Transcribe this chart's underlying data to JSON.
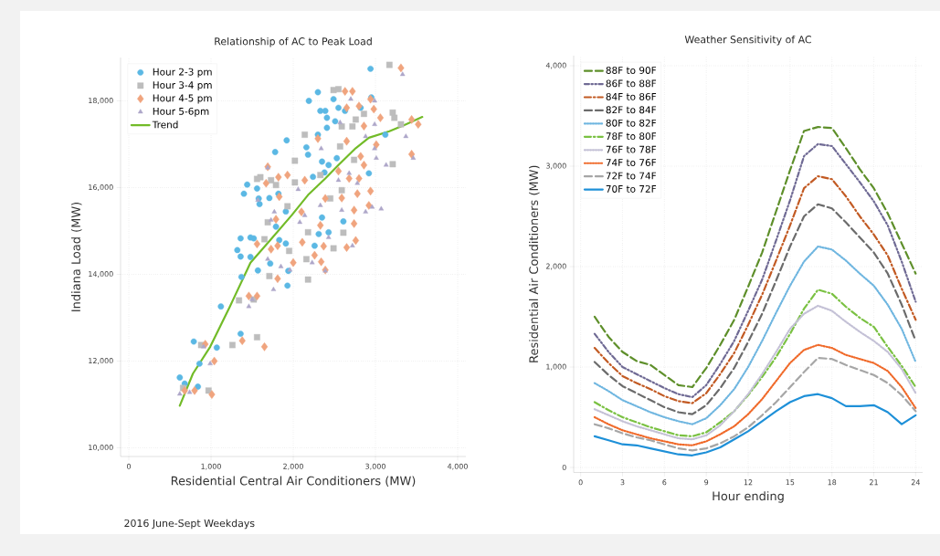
{
  "chart_data": [
    {
      "type": "scatter",
      "title": "Relationship of AC to Peak Load",
      "xlabel": "Residential Central Air Conditioners (MW)",
      "ylabel": "Indiana Load (MW)",
      "annotations": [
        "2016 June-Sept Weekdays"
      ],
      "xlim": [
        -100,
        4100
      ],
      "ylim": [
        9800,
        19000
      ],
      "xticks": [
        0,
        {
          "value": 1000,
          "label": "1,000"
        },
        {
          "value": 2000,
          "label": "2,000"
        },
        {
          "value": 3000,
          "label": "3,000"
        },
        {
          "value": 4000,
          "label": "4,000"
        }
      ],
      "yticks": [
        {
          "value": 10000,
          "label": "10,000"
        },
        {
          "value": 12000,
          "label": "12,000"
        },
        {
          "value": 14000,
          "label": "14,000"
        },
        {
          "value": 16000,
          "label": "16,000"
        },
        {
          "value": 18000,
          "label": "18,000"
        }
      ],
      "grid": true,
      "legend": "top left",
      "series": [
        {
          "name": "Hour 2-3 pm",
          "type": "scatter",
          "marker": "circle",
          "color": "#5bb8e4",
          "x": [
            2940,
            2950,
            2190,
            2300,
            2490,
            2330,
            2390,
            2410,
            2410,
            2550,
            2510,
            2630,
            2300,
            1920,
            1780,
            2160,
            2180,
            2350,
            2430,
            2530,
            2920,
            3120,
            2240,
            2380,
            1440,
            1400,
            1560,
            1580,
            1590,
            1710,
            1820,
            1910,
            1790,
            2350,
            2310,
            2430,
            2610,
            1360,
            1480,
            1520,
            1320,
            1360,
            1480,
            1830,
            1910,
            2260,
            1720,
            1570,
            1940,
            1370,
            1930,
            1120,
            1360,
            1070,
            790,
            860,
            620,
            680,
            840,
            2820
          ],
          "values": [
            18740,
            18080,
            18000,
            18200,
            18040,
            17770,
            17770,
            17610,
            17380,
            17840,
            17530,
            17770,
            17220,
            17090,
            16820,
            16930,
            16760,
            16600,
            16520,
            16680,
            16330,
            17220,
            16250,
            16350,
            16070,
            15860,
            15980,
            15750,
            15620,
            15760,
            15860,
            15450,
            15100,
            15310,
            14930,
            14970,
            15220,
            14830,
            14850,
            14830,
            14560,
            14410,
            14400,
            14790,
            14710,
            14660,
            14250,
            14090,
            14080,
            13940,
            13740,
            13260,
            12630,
            12310,
            12450,
            11940,
            11620,
            11480,
            11410,
            17840
          ]
        },
        {
          "name": "Hour 3-4 pm",
          "type": "scatter",
          "marker": "square",
          "color": "#bdbdbd",
          "x": [
            3170,
            2490,
            2550,
            3210,
            3230,
            2140,
            2020,
            1600,
            1560,
            3210,
            1730,
            1790,
            2020,
            2450,
            2590,
            2330,
            2570,
            2740,
            1930,
            1690,
            1650,
            1950,
            2180,
            2490,
            2610,
            2160,
            1710,
            2180,
            1340,
            1520,
            1260,
            1560,
            880,
            970,
            660,
            2720,
            2860,
            2590,
            3310,
            2760
          ],
          "values": [
            18830,
            18250,
            18270,
            17730,
            17610,
            17220,
            16620,
            16240,
            16200,
            16540,
            16170,
            16060,
            16120,
            15750,
            15940,
            16290,
            16950,
            16640,
            15570,
            15200,
            14810,
            14540,
            14970,
            14600,
            14960,
            14350,
            13960,
            13880,
            13400,
            13420,
            12370,
            12550,
            12370,
            11320,
            11380,
            17410,
            17700,
            17410,
            17460,
            17570
          ]
        },
        {
          "name": "Hour 4-5 pm",
          "type": "scatter",
          "marker": "diamond",
          "color": "#f0a47e",
          "x": [
            3310,
            2630,
            2720,
            2940,
            2980,
            2800,
            2650,
            3060,
            2860,
            3440,
            3520,
            3440,
            2300,
            2650,
            3010,
            2820,
            2860,
            1690,
            1670,
            1820,
            1930,
            2140,
            2550,
            2680,
            2800,
            2940,
            2780,
            2390,
            2590,
            1830,
            2100,
            2330,
            2740,
            2920,
            2740,
            1790,
            1560,
            1730,
            1810,
            2110,
            2370,
            2260,
            2340,
            2390,
            2000,
            1810,
            1460,
            1560,
            1380,
            1650,
            930,
            1040,
            680,
            800,
            1010,
            2650,
            2760
          ],
          "values": [
            18760,
            18220,
            18220,
            18040,
            17810,
            17880,
            17840,
            17610,
            17420,
            17570,
            17460,
            16770,
            17130,
            17070,
            16990,
            16720,
            16520,
            16480,
            16100,
            16240,
            16290,
            16170,
            16380,
            16210,
            16210,
            15920,
            15860,
            15750,
            15760,
            15790,
            15440,
            15130,
            15480,
            15590,
            15170,
            15270,
            14700,
            14580,
            14660,
            14740,
            14650,
            14440,
            14290,
            14100,
            14270,
            13900,
            13500,
            13500,
            12470,
            12330,
            12390,
            12000,
            11320,
            11320,
            11230,
            14620,
            14780
          ]
        },
        {
          "name": "Hour 5-6pm",
          "type": "scatter",
          "marker": "triangle",
          "color": "#aea7c9",
          "x": [
            3330,
            2700,
            2990,
            2570,
            2990,
            3370,
            3130,
            3460,
            2340,
            2880,
            2990,
            3010,
            1690,
            1570,
            1770,
            1730,
            2080,
            2550,
            2680,
            2780,
            2960,
            2880,
            2330,
            2140,
            2430,
            2720,
            2590,
            1690,
            1850,
            1960,
            2230,
            2390,
            1760,
            1460,
            1500,
            910,
            990,
            620,
            740,
            3070,
            2060
          ],
          "values": [
            18610,
            18040,
            18000,
            17500,
            17460,
            17180,
            16520,
            16680,
            16900,
            17180,
            16900,
            16680,
            16460,
            15710,
            15440,
            15250,
            15200,
            16170,
            16330,
            16100,
            15550,
            15440,
            15590,
            15360,
            14850,
            14660,
            15480,
            14350,
            14180,
            14100,
            14270,
            14080,
            13650,
            13260,
            13420,
            12330,
            11940,
            11240,
            11280,
            15510,
            15960
          ]
        },
        {
          "name": "Trend",
          "type": "line",
          "marker": "none",
          "color": "#72bb28",
          "x": [
            620,
            780,
            990,
            1230,
            1480,
            1730,
            1980,
            2180,
            2390,
            2550,
            2760,
            2920,
            3170,
            3370,
            3570
          ],
          "values": [
            10970,
            11710,
            12330,
            13260,
            14270,
            14810,
            15360,
            15830,
            16210,
            16520,
            16910,
            17150,
            17300,
            17460,
            17630
          ]
        }
      ]
    },
    {
      "type": "line",
      "title": "Weather Sensitivity of AC",
      "xlabel": "Hour ending",
      "ylabel": "Residential Air Conditioners (MW)",
      "xlim": [
        -0.5,
        24.5
      ],
      "ylim": [
        -50,
        4100
      ],
      "xticks": [
        0,
        3,
        6,
        9,
        12,
        15,
        18,
        21,
        24
      ],
      "yticks": [
        0,
        {
          "value": 1000,
          "label": "1,000"
        },
        {
          "value": 2000,
          "label": "2,000"
        },
        {
          "value": 3000,
          "label": "3,000"
        },
        {
          "value": 4000,
          "label": "4,000"
        }
      ],
      "grid": true,
      "legend": "top left",
      "marker": "none",
      "x": [
        1,
        2,
        3,
        4,
        5,
        6,
        7,
        8,
        9,
        10,
        11,
        12,
        13,
        14,
        15,
        16,
        17,
        18,
        19,
        20,
        21,
        22,
        23,
        24
      ],
      "series": [
        {
          "name": "88F to 90F",
          "color": "#5e8f2a",
          "line_style": "dashed",
          "values": [
            1500,
            1300,
            1150,
            1060,
            1020,
            920,
            820,
            800,
            990,
            1220,
            1470,
            1800,
            2140,
            2550,
            2960,
            3350,
            3390,
            3380,
            3180,
            2970,
            2780,
            2530,
            2230,
            1930
          ]
        },
        {
          "name": "86F to 88F",
          "color": "#6f6a94",
          "line_style": "dashdotdot",
          "values": [
            1330,
            1150,
            1000,
            930,
            860,
            790,
            730,
            700,
            820,
            1030,
            1260,
            1560,
            1870,
            2260,
            2660,
            3100,
            3220,
            3200,
            3020,
            2840,
            2650,
            2410,
            2050,
            1650
          ]
        },
        {
          "name": "84F to 86F",
          "color": "#c25a23",
          "line_style": "dashdot",
          "values": [
            1190,
            1040,
            910,
            840,
            780,
            710,
            660,
            640,
            740,
            930,
            1140,
            1420,
            1720,
            2060,
            2410,
            2780,
            2900,
            2870,
            2700,
            2500,
            2320,
            2110,
            1780,
            1470
          ]
        },
        {
          "name": "82F to 84F",
          "color": "#6b6b6b",
          "line_style": "dashed",
          "values": [
            1050,
            920,
            810,
            740,
            670,
            600,
            550,
            530,
            620,
            790,
            990,
            1250,
            1530,
            1860,
            2200,
            2500,
            2620,
            2580,
            2440,
            2290,
            2140,
            1930,
            1620,
            1260
          ]
        },
        {
          "name": "80F to 82F",
          "color": "#6fb6e0",
          "line_style": "dotted",
          "values": [
            840,
            760,
            670,
            610,
            550,
            500,
            460,
            430,
            490,
            620,
            780,
            1000,
            1260,
            1540,
            1810,
            2050,
            2200,
            2170,
            2060,
            1930,
            1810,
            1620,
            1380,
            1050
          ]
        },
        {
          "name": "78F to 80F",
          "color": "#7ac142",
          "line_style": "dashdot",
          "values": [
            650,
            570,
            500,
            450,
            400,
            360,
            320,
            310,
            350,
            450,
            560,
            720,
            900,
            1100,
            1330,
            1580,
            1770,
            1730,
            1600,
            1490,
            1400,
            1200,
            1010,
            800
          ]
        },
        {
          "name": "76F to 78F",
          "color": "#c4c1d6",
          "line_style": "dotted",
          "values": [
            580,
            520,
            460,
            410,
            370,
            330,
            290,
            280,
            320,
            420,
            560,
            730,
            930,
            1150,
            1380,
            1530,
            1610,
            1560,
            1450,
            1350,
            1260,
            1150,
            980,
            740
          ]
        },
        {
          "name": "74F to 76F",
          "color": "#f06a2a",
          "line_style": "dotted",
          "values": [
            500,
            430,
            370,
            330,
            290,
            260,
            230,
            220,
            260,
            330,
            410,
            530,
            680,
            860,
            1040,
            1170,
            1220,
            1190,
            1120,
            1080,
            1040,
            960,
            800,
            590
          ]
        },
        {
          "name": "72F to 74F",
          "color": "#a6a6a6",
          "line_style": "dashed",
          "values": [
            430,
            390,
            340,
            300,
            270,
            230,
            190,
            170,
            190,
            240,
            310,
            400,
            520,
            650,
            800,
            950,
            1090,
            1080,
            1020,
            970,
            920,
            840,
            720,
            560
          ]
        },
        {
          "name": "70F to 72F",
          "color": "#1e90d8",
          "line_style": "solid",
          "values": [
            310,
            270,
            230,
            220,
            190,
            160,
            130,
            120,
            150,
            200,
            280,
            360,
            460,
            560,
            650,
            710,
            730,
            690,
            610,
            610,
            620,
            550,
            430,
            520
          ]
        }
      ]
    }
  ]
}
